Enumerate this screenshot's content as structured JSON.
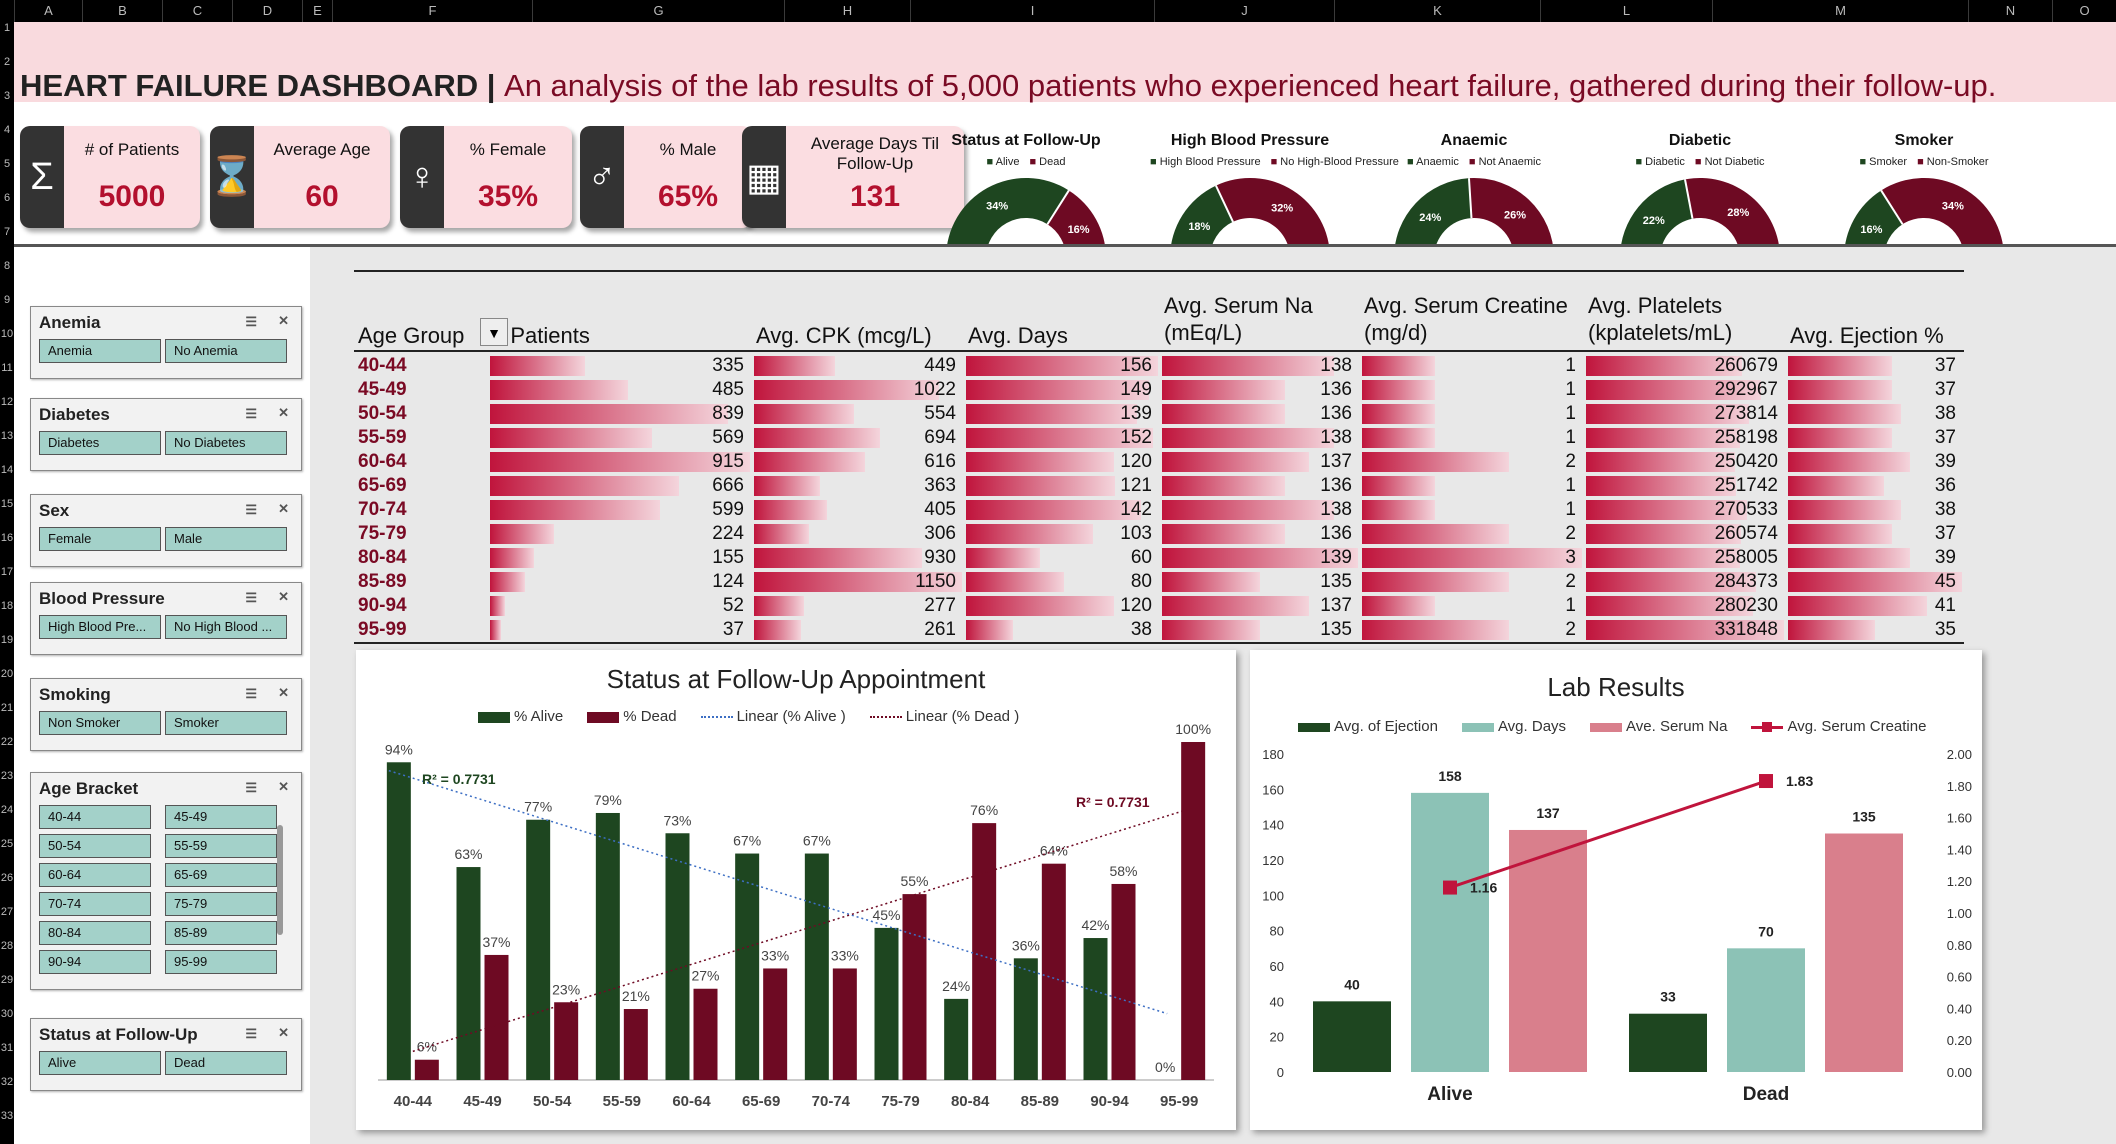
{
  "spreadsheet": {
    "columns": [
      "A",
      "B",
      "C",
      "D",
      "E",
      "F",
      "G",
      "H",
      "I",
      "J",
      "K",
      "L",
      "M",
      "N",
      "O"
    ],
    "rows": [
      "1",
      "2",
      "3",
      "4",
      "5",
      "6",
      "7",
      "8",
      "9",
      "10",
      "11",
      "12",
      "13",
      "14",
      "15",
      "16",
      "17",
      "18",
      "19",
      "20",
      "21",
      "22",
      "23",
      "24",
      "25",
      "26",
      "27",
      "28",
      "29",
      "30",
      "31",
      "32",
      "33"
    ]
  },
  "banner": {
    "title": "HEART FAILURE DASHBOARD",
    "separator": " | ",
    "subtitle": "An analysis of the lab results of 5,000 patients who experienced heart failure, gathered during their follow-up."
  },
  "kpis": [
    {
      "label": "# of Patients",
      "value": "5000",
      "icon": "sigma-icon"
    },
    {
      "label": "Average Age",
      "value": "60",
      "icon": "hourglass-icon"
    },
    {
      "label": "% Female",
      "value": "35%",
      "icon": "female-icon"
    },
    {
      "label": "% Male",
      "value": "65%",
      "icon": "male-icon"
    },
    {
      "label": "Average Days Til Follow-Up",
      "value": "131",
      "icon": "calendar-icon"
    }
  ],
  "gauges": [
    {
      "title": "Status at Follow-Up",
      "legend": [
        "Alive",
        "Dead"
      ],
      "green": "34%",
      "red": "16%",
      "green_frac": 0.34
    },
    {
      "title": "High Blood Pressure",
      "legend": [
        "High Blood Pressure",
        "No High-Blood Pressure"
      ],
      "green": "18%",
      "red": "32%",
      "green_frac": 0.18
    },
    {
      "title": "Anaemic",
      "legend": [
        "Anaemic",
        "Not Anaemic"
      ],
      "green": "24%",
      "red": "26%",
      "green_frac": 0.24
    },
    {
      "title": "Diabetic",
      "legend": [
        "Diabetic",
        "Not Diabetic"
      ],
      "green": "22%",
      "red": "28%",
      "green_frac": 0.22
    },
    {
      "title": "Smoker",
      "legend": [
        "Smoker",
        "Non-Smoker"
      ],
      "green": "16%",
      "red": "34%",
      "green_frac": 0.16
    }
  ],
  "slicers": [
    {
      "title": "Anemia",
      "items": [
        "Anemia",
        "No Anemia"
      ]
    },
    {
      "title": "Diabetes",
      "items": [
        "Diabetes",
        "No Diabetes"
      ]
    },
    {
      "title": "Sex",
      "items": [
        "Female",
        "Male"
      ]
    },
    {
      "title": "Blood Pressure",
      "items": [
        "High Blood Pre...",
        "No High Blood ..."
      ]
    },
    {
      "title": "Smoking",
      "items": [
        "Non Smoker",
        "Smoker"
      ]
    },
    {
      "title": "Age Bracket",
      "items": [
        "40-44",
        "45-49",
        "50-54",
        "55-59",
        "60-64",
        "65-69",
        "70-74",
        "75-79",
        "80-84",
        "85-89",
        "90-94",
        "95-99"
      ]
    },
    {
      "title": "Status at Follow-Up",
      "items": [
        "Alive",
        "Dead"
      ]
    }
  ],
  "table": {
    "headers": [
      "Age Group",
      "# Patients",
      "Avg. CPK (mcg/L)",
      "Avg. Days",
      "Avg. Serum Na (mEq/L)",
      "Avg. Serum Creatine (mg/d)",
      "Avg. Platelets (kplatelets/mL)",
      "Avg. Ejection %"
    ],
    "rows": [
      [
        "40-44",
        "335",
        "449",
        "156",
        "138",
        "1",
        "260679",
        "37"
      ],
      [
        "45-49",
        "485",
        "1022",
        "149",
        "136",
        "1",
        "292967",
        "37"
      ],
      [
        "50-54",
        "839",
        "554",
        "139",
        "136",
        "1",
        "273814",
        "38"
      ],
      [
        "55-59",
        "569",
        "694",
        "152",
        "138",
        "1",
        "258198",
        "37"
      ],
      [
        "60-64",
        "915",
        "616",
        "120",
        "137",
        "2",
        "250420",
        "39"
      ],
      [
        "65-69",
        "666",
        "363",
        "121",
        "136",
        "1",
        "251742",
        "36"
      ],
      [
        "70-74",
        "599",
        "405",
        "142",
        "138",
        "1",
        "270533",
        "38"
      ],
      [
        "75-79",
        "224",
        "306",
        "103",
        "136",
        "2",
        "260574",
        "37"
      ],
      [
        "80-84",
        "155",
        "930",
        "60",
        "139",
        "3",
        "258005",
        "39"
      ],
      [
        "85-89",
        "124",
        "1150",
        "80",
        "135",
        "2",
        "284373",
        "45"
      ],
      [
        "90-94",
        "52",
        "277",
        "120",
        "137",
        "1",
        "280230",
        "41"
      ],
      [
        "95-99",
        "37",
        "261",
        "38",
        "135",
        "2",
        "331848",
        "35"
      ]
    ]
  },
  "chart_data": [
    {
      "type": "bar",
      "title": "Status at Follow-Up Appointment",
      "categories": [
        "40-44",
        "45-49",
        "50-54",
        "55-59",
        "60-64",
        "65-69",
        "70-74",
        "75-79",
        "80-84",
        "85-89",
        "90-94",
        "95-99"
      ],
      "series": [
        {
          "name": "% Alive",
          "values": [
            94,
            63,
            77,
            79,
            73,
            67,
            67,
            45,
            24,
            36,
            42,
            0
          ],
          "labels": [
            "94%",
            "63%",
            "77%",
            "79%",
            "73%",
            "67%",
            "67%",
            "45%",
            "24%",
            "36%",
            "42%",
            "0%"
          ],
          "color": "#1e4620"
        },
        {
          "name": "% Dead",
          "values": [
            6,
            37,
            23,
            21,
            27,
            33,
            33,
            55,
            76,
            64,
            58,
            100
          ],
          "labels": [
            "6%",
            "37%",
            "23%",
            "21%",
            "27%",
            "33%",
            "33%",
            "55%",
            "76%",
            "64%",
            "58%",
            "100%"
          ],
          "color": "#6e0a23"
        }
      ],
      "trendlines": [
        {
          "name": "Linear (% Alive  )",
          "r2": "R² = 0.7731",
          "color": "#3d6fc4"
        },
        {
          "name": "Linear (% Dead  )",
          "r2": "R² = 0.7731",
          "color": "#6e0a23"
        }
      ],
      "ylim": [
        0,
        100
      ]
    },
    {
      "type": "bar",
      "title": "Lab Results",
      "categories": [
        "Alive",
        "Dead"
      ],
      "series": [
        {
          "name": "Avg. of Ejection",
          "values": [
            40,
            33
          ],
          "color": "#1e4620"
        },
        {
          "name": "Avg. Days",
          "values": [
            158,
            70
          ],
          "color": "#8cc2b6"
        },
        {
          "name": "Ave. Serum Na",
          "values": [
            137,
            135
          ],
          "color": "#d97f8c"
        },
        {
          "name": "Avg. Serum Creatine",
          "values": [
            1.16,
            1.83
          ],
          "color": "#c0143c",
          "axis": "secondary"
        }
      ],
      "yticks": [
        "180",
        "160",
        "140",
        "120",
        "100",
        "80",
        "60",
        "40",
        "20",
        "0"
      ],
      "y2ticks": [
        "2.00",
        "1.80",
        "1.60",
        "1.40",
        "1.20",
        "1.00",
        "0.80",
        "0.60",
        "0.40",
        "0.20",
        "0.00"
      ],
      "ylim": [
        0,
        180
      ],
      "y2lim": [
        0,
        2
      ]
    }
  ]
}
